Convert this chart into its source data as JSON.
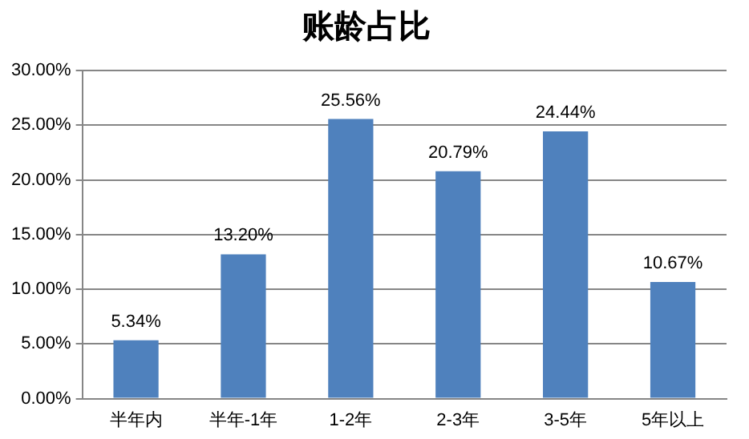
{
  "chart_data": {
    "type": "bar",
    "title": "账龄占比",
    "categories": [
      "半年内",
      "半年-1年",
      "1-2年",
      "2-3年",
      "3-5年",
      "5年以上"
    ],
    "values": [
      5.34,
      13.2,
      25.56,
      20.79,
      24.44,
      10.67
    ],
    "value_labels": [
      "5.34%",
      "13.20%",
      "25.56%",
      "20.79%",
      "24.44%",
      "10.67%"
    ],
    "color": "#4f81bd",
    "ylim": [
      0,
      30
    ],
    "yticks": [
      {
        "value": 0,
        "label": "0.00%"
      },
      {
        "value": 5,
        "label": "5.00%"
      },
      {
        "value": 10,
        "label": "10.00%"
      },
      {
        "value": 15,
        "label": "15.00%"
      },
      {
        "value": 20,
        "label": "20.00%"
      },
      {
        "value": 25,
        "label": "25.00%"
      },
      {
        "value": 30,
        "label": "30.00%"
      }
    ],
    "grid": "y",
    "legend": false
  }
}
